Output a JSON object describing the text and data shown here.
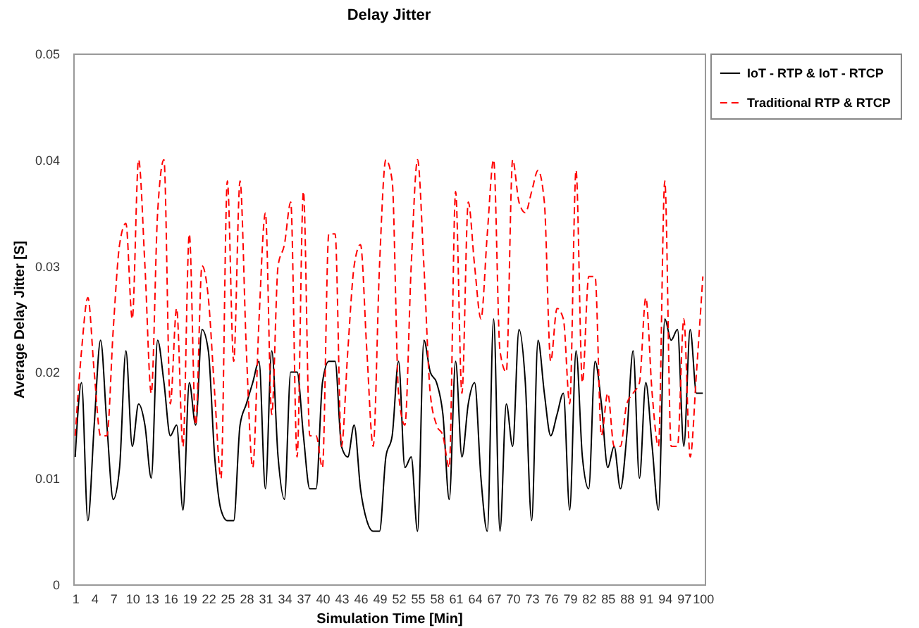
{
  "chart_data": {
    "type": "line",
    "title": "Delay Jitter",
    "xlabel": "Simulation Time [Min]",
    "ylabel": "Average Delay Jitter [S]",
    "categories": [
      "1",
      null,
      null,
      "4",
      null,
      null,
      "7",
      null,
      null,
      "10",
      null,
      null,
      "13",
      null,
      null,
      "16",
      null,
      null,
      "19",
      null,
      null,
      "22",
      null,
      null,
      "25",
      null,
      null,
      "28",
      null,
      null,
      "31",
      null,
      null,
      "34",
      null,
      null,
      "37",
      null,
      null,
      "40",
      null,
      null,
      "43",
      null,
      null,
      "46",
      null,
      null,
      "49",
      null,
      null,
      "52",
      null,
      null,
      "55",
      null,
      null,
      "58",
      null,
      null,
      "61",
      null,
      null,
      "64",
      null,
      null,
      "67",
      null,
      null,
      "70",
      null,
      null,
      "73",
      null,
      null,
      "76",
      null,
      null,
      "79",
      null,
      null,
      "82",
      null,
      null,
      "85",
      null,
      null,
      "88",
      null,
      null,
      "91",
      null,
      null,
      "94",
      null,
      null,
      "97",
      null,
      null,
      "100"
    ],
    "ylim": [
      0,
      0.05
    ],
    "yticks": [
      {
        "value": 0,
        "label": "0"
      },
      0.01,
      0.02,
      0.03,
      0.04,
      0.05
    ],
    "grid": false,
    "legend": "top right",
    "series": [
      {
        "name": "IoT - RTP & IoT - RTCP",
        "color": "#000000",
        "line_style": "solid",
        "values": [
          0.012,
          0.019,
          0.006,
          0.015,
          0.023,
          0.015,
          0.008,
          0.011,
          0.022,
          0.013,
          0.017,
          0.015,
          0.01,
          0.023,
          0.019,
          0.014,
          0.015,
          0.007,
          0.019,
          0.015,
          0.024,
          0.022,
          0.012,
          0.007,
          0.006,
          0.006,
          0.015,
          0.017,
          0.019,
          0.021,
          0.009,
          0.022,
          0.012,
          0.008,
          0.02,
          0.02,
          0.014,
          0.009,
          0.009,
          0.019,
          0.021,
          0.021,
          0.013,
          0.012,
          0.015,
          0.009,
          0.006,
          0.005,
          0.005,
          0.012,
          0.014,
          0.021,
          0.011,
          0.012,
          0.005,
          0.023,
          0.02,
          0.019,
          0.016,
          0.008,
          0.021,
          0.012,
          0.017,
          0.019,
          0.01,
          0.005,
          0.025,
          0.005,
          0.017,
          0.013,
          0.024,
          0.019,
          0.006,
          0.023,
          0.018,
          0.014,
          0.016,
          0.018,
          0.007,
          0.022,
          0.012,
          0.009,
          0.021,
          0.017,
          0.011,
          0.013,
          0.009,
          0.014,
          0.022,
          0.01,
          0.019,
          0.013,
          0.007,
          0.025,
          0.023,
          0.024,
          0.013,
          0.024,
          0.018,
          0.018
        ]
      },
      {
        "name": "Traditional RTP & RTCP",
        "color": "#ff0000",
        "line_style": "dashed",
        "values": [
          0.014,
          0.022,
          0.027,
          0.02,
          0.014,
          0.014,
          0.024,
          0.032,
          0.034,
          0.025,
          0.04,
          0.03,
          0.018,
          0.035,
          0.04,
          0.017,
          0.026,
          0.013,
          0.033,
          0.015,
          0.03,
          0.027,
          0.018,
          0.01,
          0.038,
          0.021,
          0.038,
          0.022,
          0.011,
          0.025,
          0.035,
          0.016,
          0.03,
          0.032,
          0.036,
          0.012,
          0.037,
          0.014,
          0.014,
          0.011,
          0.033,
          0.033,
          0.013,
          0.022,
          0.03,
          0.032,
          0.022,
          0.013,
          0.03,
          0.04,
          0.038,
          0.018,
          0.015,
          0.03,
          0.04,
          0.03,
          0.018,
          0.015,
          0.014,
          0.011,
          0.037,
          0.018,
          0.036,
          0.03,
          0.025,
          0.033,
          0.04,
          0.022,
          0.02,
          0.04,
          0.036,
          0.035,
          0.037,
          0.039,
          0.036,
          0.021,
          0.026,
          0.025,
          0.017,
          0.039,
          0.019,
          0.029,
          0.029,
          0.014,
          0.018,
          0.013,
          0.013,
          0.017,
          0.018,
          0.019,
          0.027,
          0.018,
          0.013,
          0.038,
          0.013,
          0.013,
          0.025,
          0.012,
          0.02,
          0.029
        ]
      }
    ]
  }
}
